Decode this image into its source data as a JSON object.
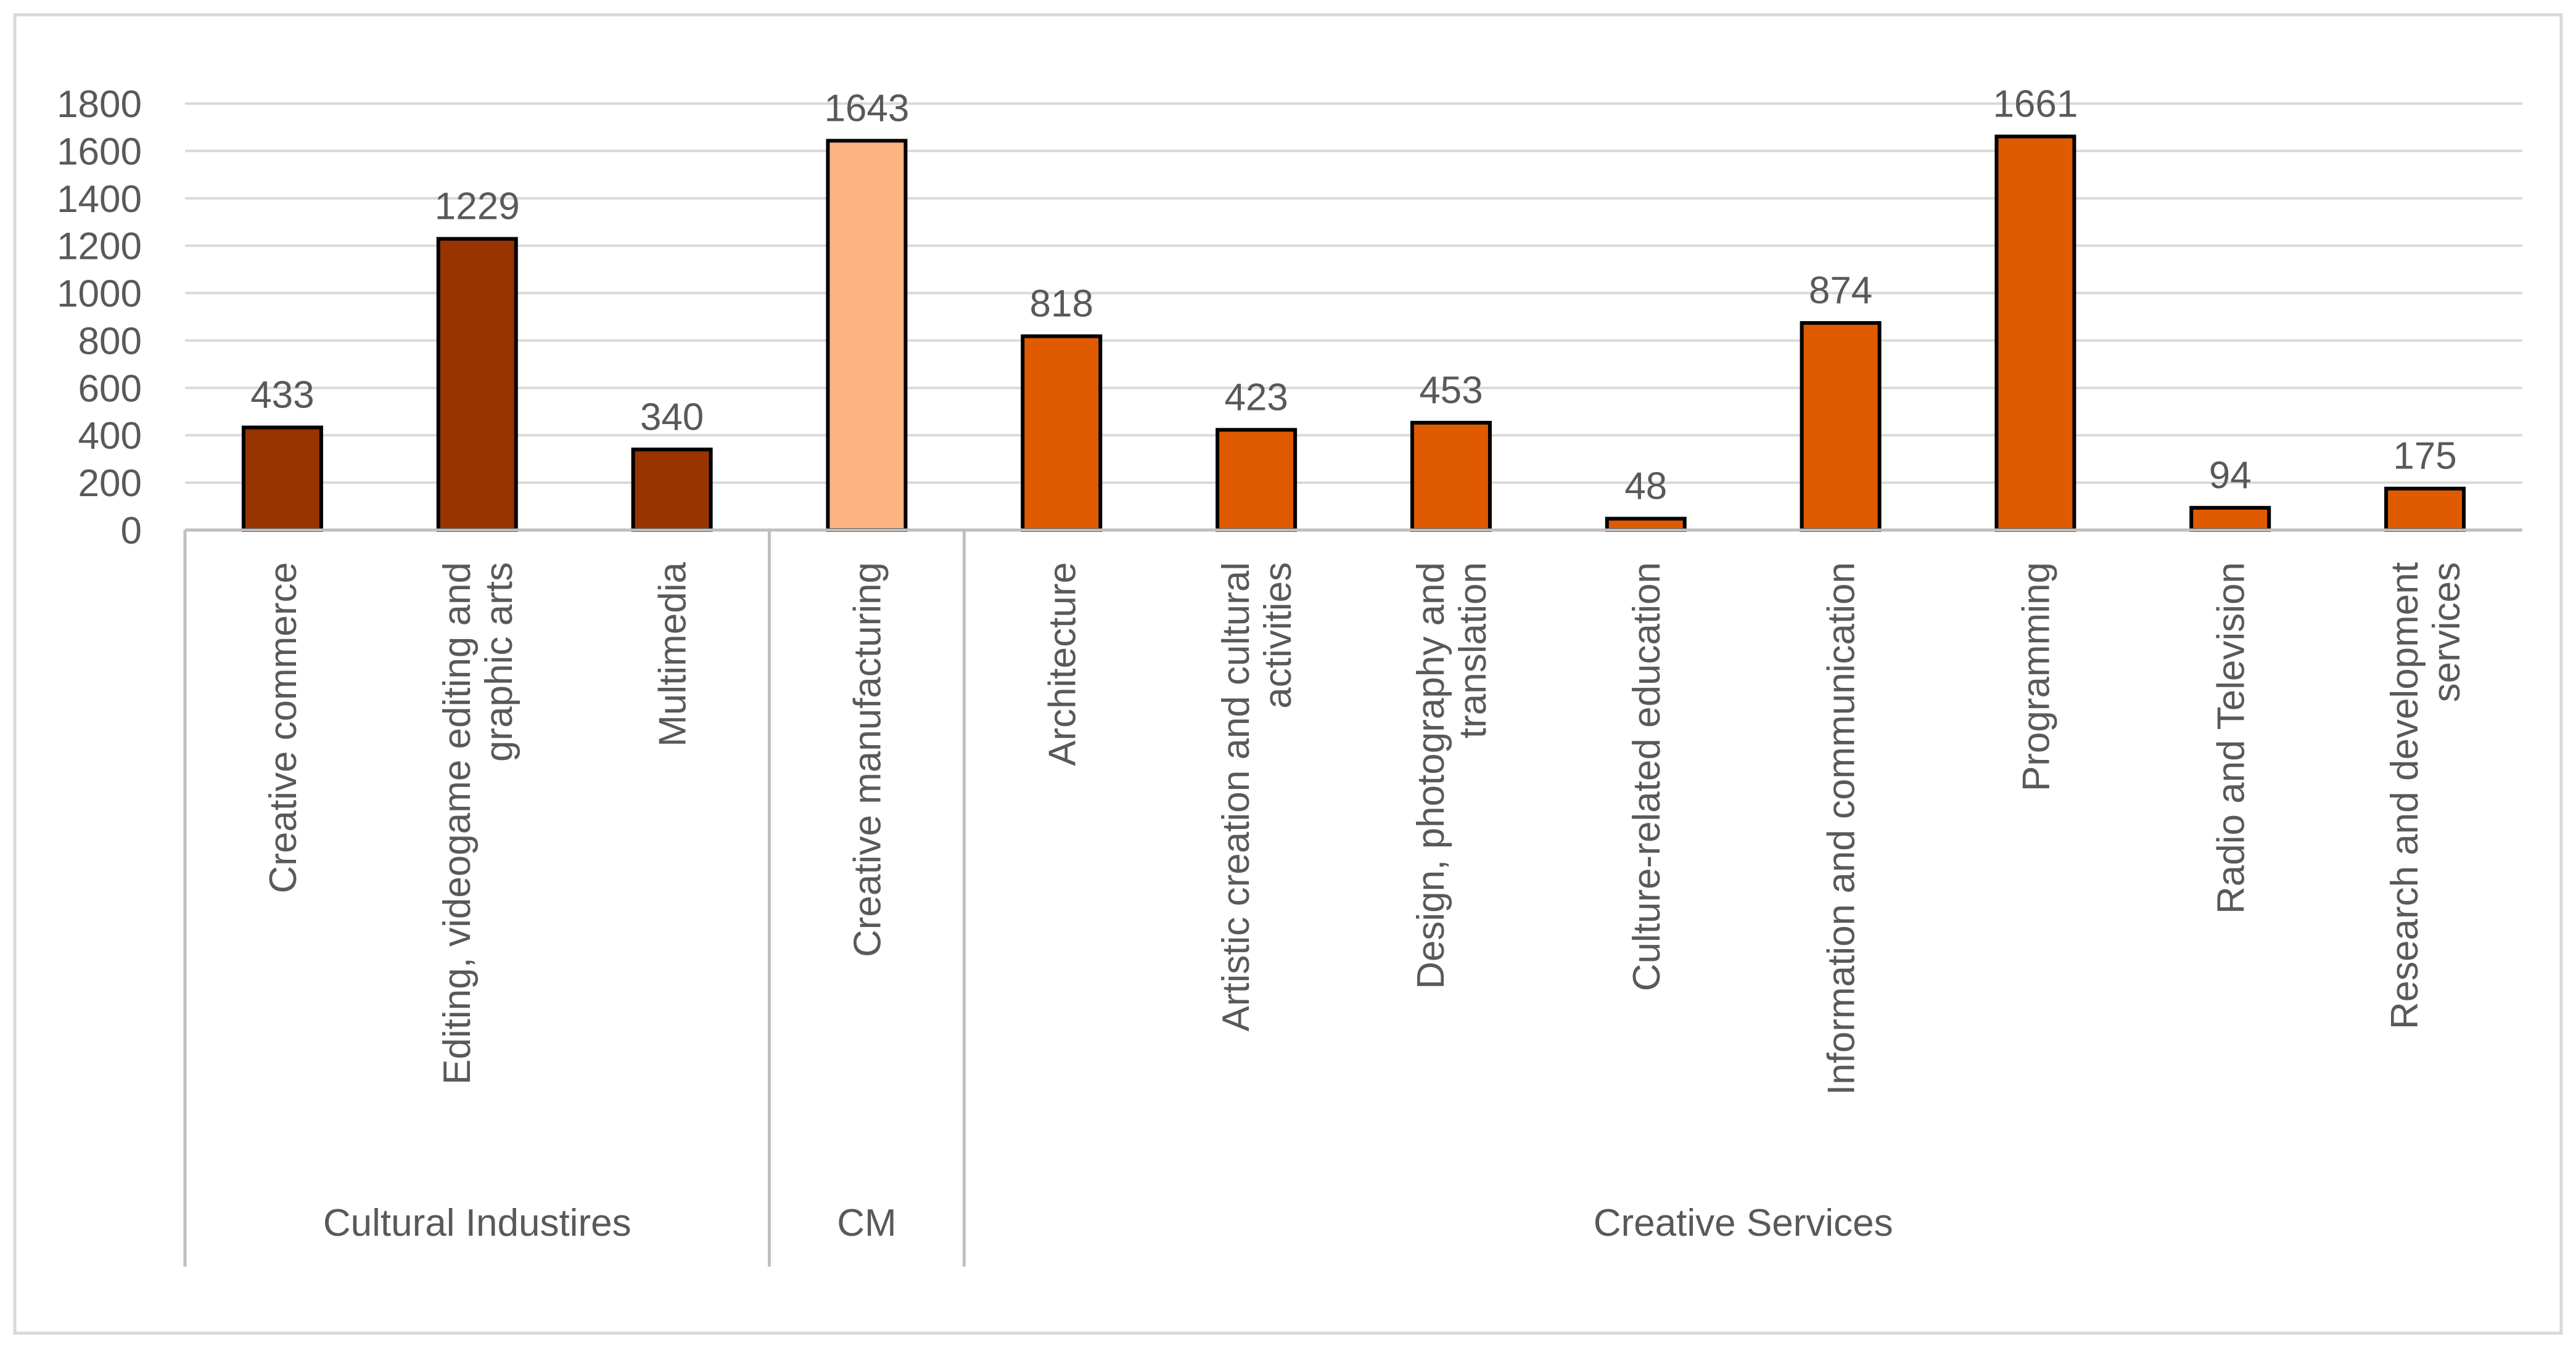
{
  "chart_data": {
    "type": "bar",
    "title": "",
    "xlabel": "",
    "ylabel": "",
    "ylim": [
      0,
      1800
    ],
    "yticks": [
      0,
      200,
      400,
      600,
      800,
      1000,
      1200,
      1400,
      1600,
      1800
    ],
    "grid": true,
    "categories": [
      "Creative commerce",
      "Editing, videogame editing and graphic arts",
      "Multimedia",
      "Creative manufacturing",
      "Architecture",
      "Artistic creation and cultural activities",
      "Design, photography and translation",
      "Culture-related education",
      "Information and communication",
      "Programming",
      "Radio and Television",
      "Research and development services"
    ],
    "category_label_lines": [
      [
        "Creative commerce"
      ],
      [
        "Editing, videogame editing and",
        "graphic arts"
      ],
      [
        "Multimedia"
      ],
      [
        "Creative manufacturing"
      ],
      [
        "Architecture"
      ],
      [
        "Artistic creation and cultural",
        "activities"
      ],
      [
        "Design, photography and",
        "translation"
      ],
      [
        "Culture-related education"
      ],
      [
        "Information and communication"
      ],
      [
        "Programming"
      ],
      [
        "Radio and Television"
      ],
      [
        "Research and development",
        "services"
      ]
    ],
    "values": [
      433,
      1229,
      340,
      1643,
      818,
      423,
      453,
      48,
      874,
      1661,
      94,
      175
    ],
    "groups": [
      {
        "name": "Cultural Industires",
        "count": 3,
        "color": "#993300"
      },
      {
        "name": "CM",
        "count": 1,
        "color": "#ffb482"
      },
      {
        "name": "Creative Services",
        "count": 8,
        "color": "#e05a00"
      }
    ],
    "colors": {
      "bar_outline": "#000000",
      "grid": "#d9d9d9",
      "axis": "#bfbfbf",
      "text": "#595959"
    }
  }
}
